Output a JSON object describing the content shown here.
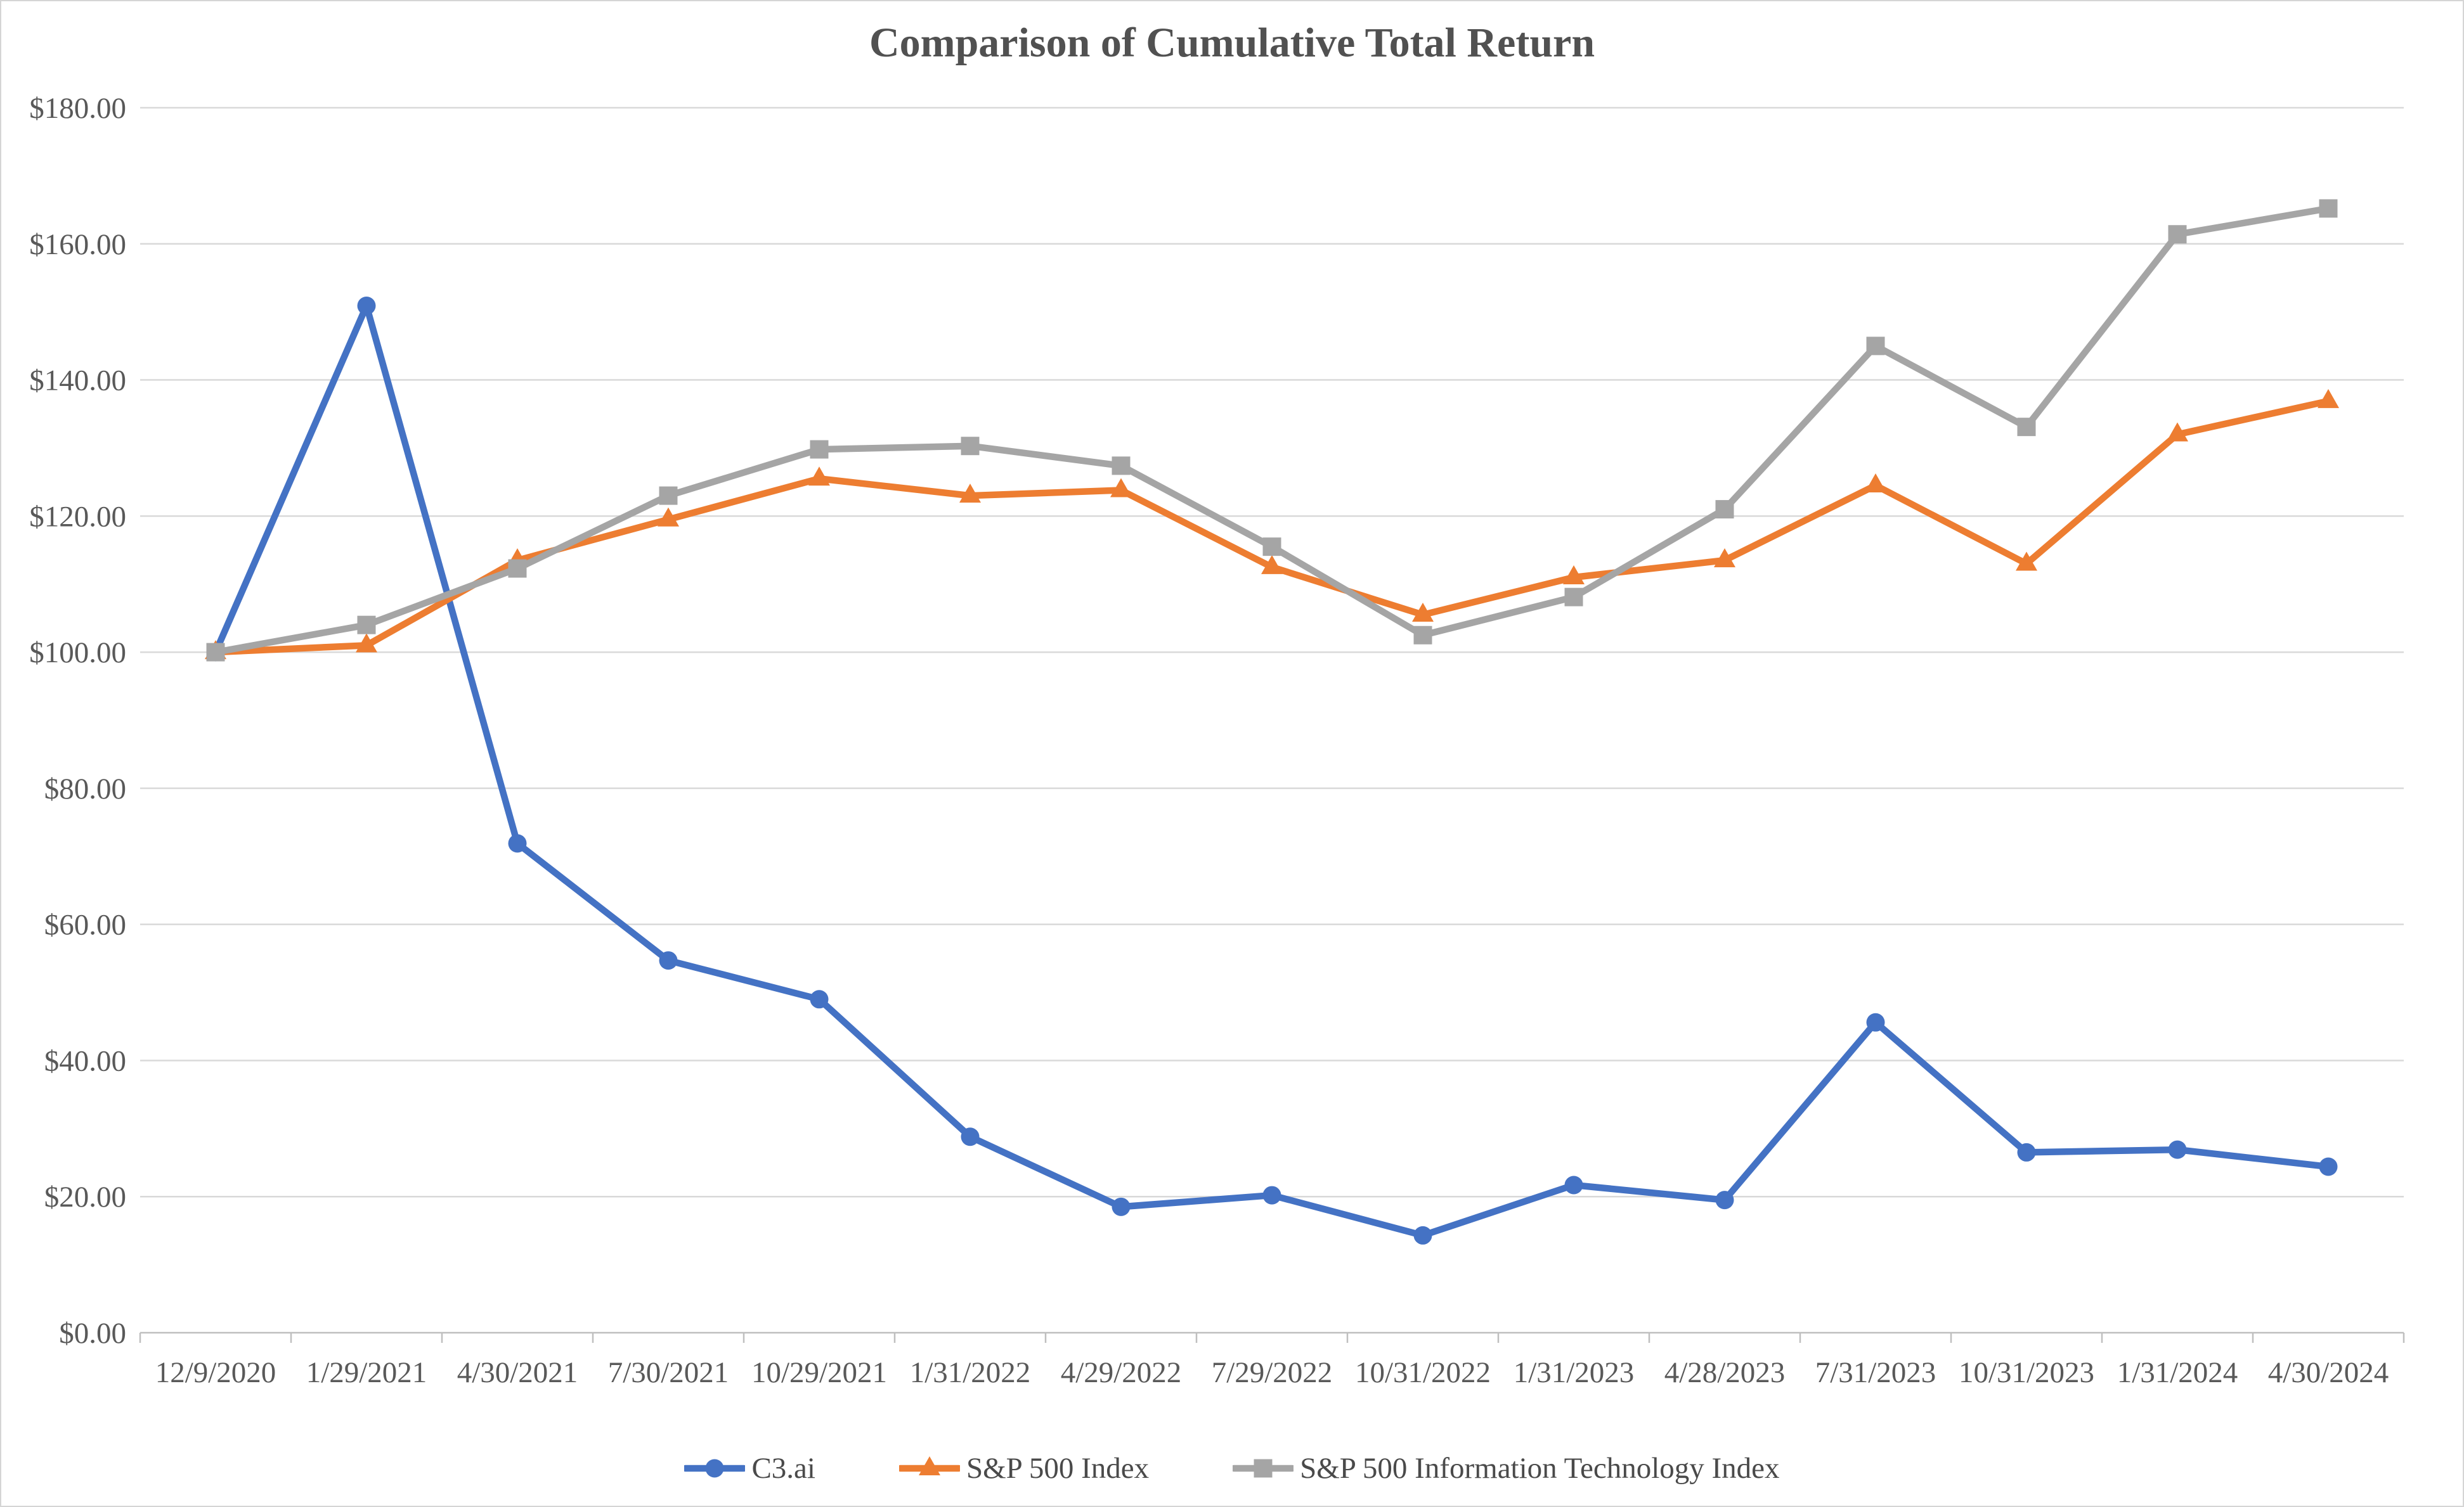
{
  "chart_data": {
    "type": "line",
    "title": "Comparison of Cumulative Total Return",
    "categories": [
      "12/9/2020",
      "1/29/2021",
      "4/30/2021",
      "7/30/2021",
      "10/29/2021",
      "1/31/2022",
      "4/29/2022",
      "7/29/2022",
      "10/31/2022",
      "1/31/2023",
      "4/28/2023",
      "7/31/2023",
      "10/31/2023",
      "1/31/2024",
      "4/30/2024"
    ],
    "series": [
      {
        "name": "C3.ai",
        "color": "#4472C4",
        "marker": "circle",
        "values": [
          100.0,
          150.9,
          71.9,
          54.7,
          49.0,
          28.8,
          18.5,
          20.2,
          14.3,
          21.7,
          19.5,
          45.6,
          26.5,
          26.9,
          24.4
        ]
      },
      {
        "name": "S&P 500 Index",
        "color": "#ED7D31",
        "marker": "triangle",
        "values": [
          100.0,
          101.0,
          113.5,
          119.5,
          125.5,
          123.0,
          123.8,
          112.5,
          105.5,
          111.0,
          113.5,
          124.5,
          113.0,
          132.0,
          136.9
        ]
      },
      {
        "name": "S&P 500 Information Technology Index",
        "color": "#A5A5A5",
        "marker": "square",
        "values": [
          100.0,
          104.0,
          112.3,
          123.0,
          129.8,
          130.3,
          127.4,
          115.5,
          102.5,
          108.1,
          121.0,
          145.0,
          133.1,
          161.4,
          165.2
        ]
      }
    ],
    "xlabel": "",
    "ylabel": "",
    "ylim": [
      0,
      180
    ],
    "y_tick_step": 20,
    "y_tick_prefix": "$",
    "y_tick_decimals": 2,
    "grid": true,
    "legend_position": "bottom"
  },
  "colors": {
    "background": "#FFFFFF",
    "canvas_border": "#D5D5D5",
    "gridline": "#D9D9D9",
    "axis_line": "#BFBFBF",
    "axis_text": "#595959",
    "title_text": "#515151",
    "legend_text": "#4A4A4A"
  }
}
